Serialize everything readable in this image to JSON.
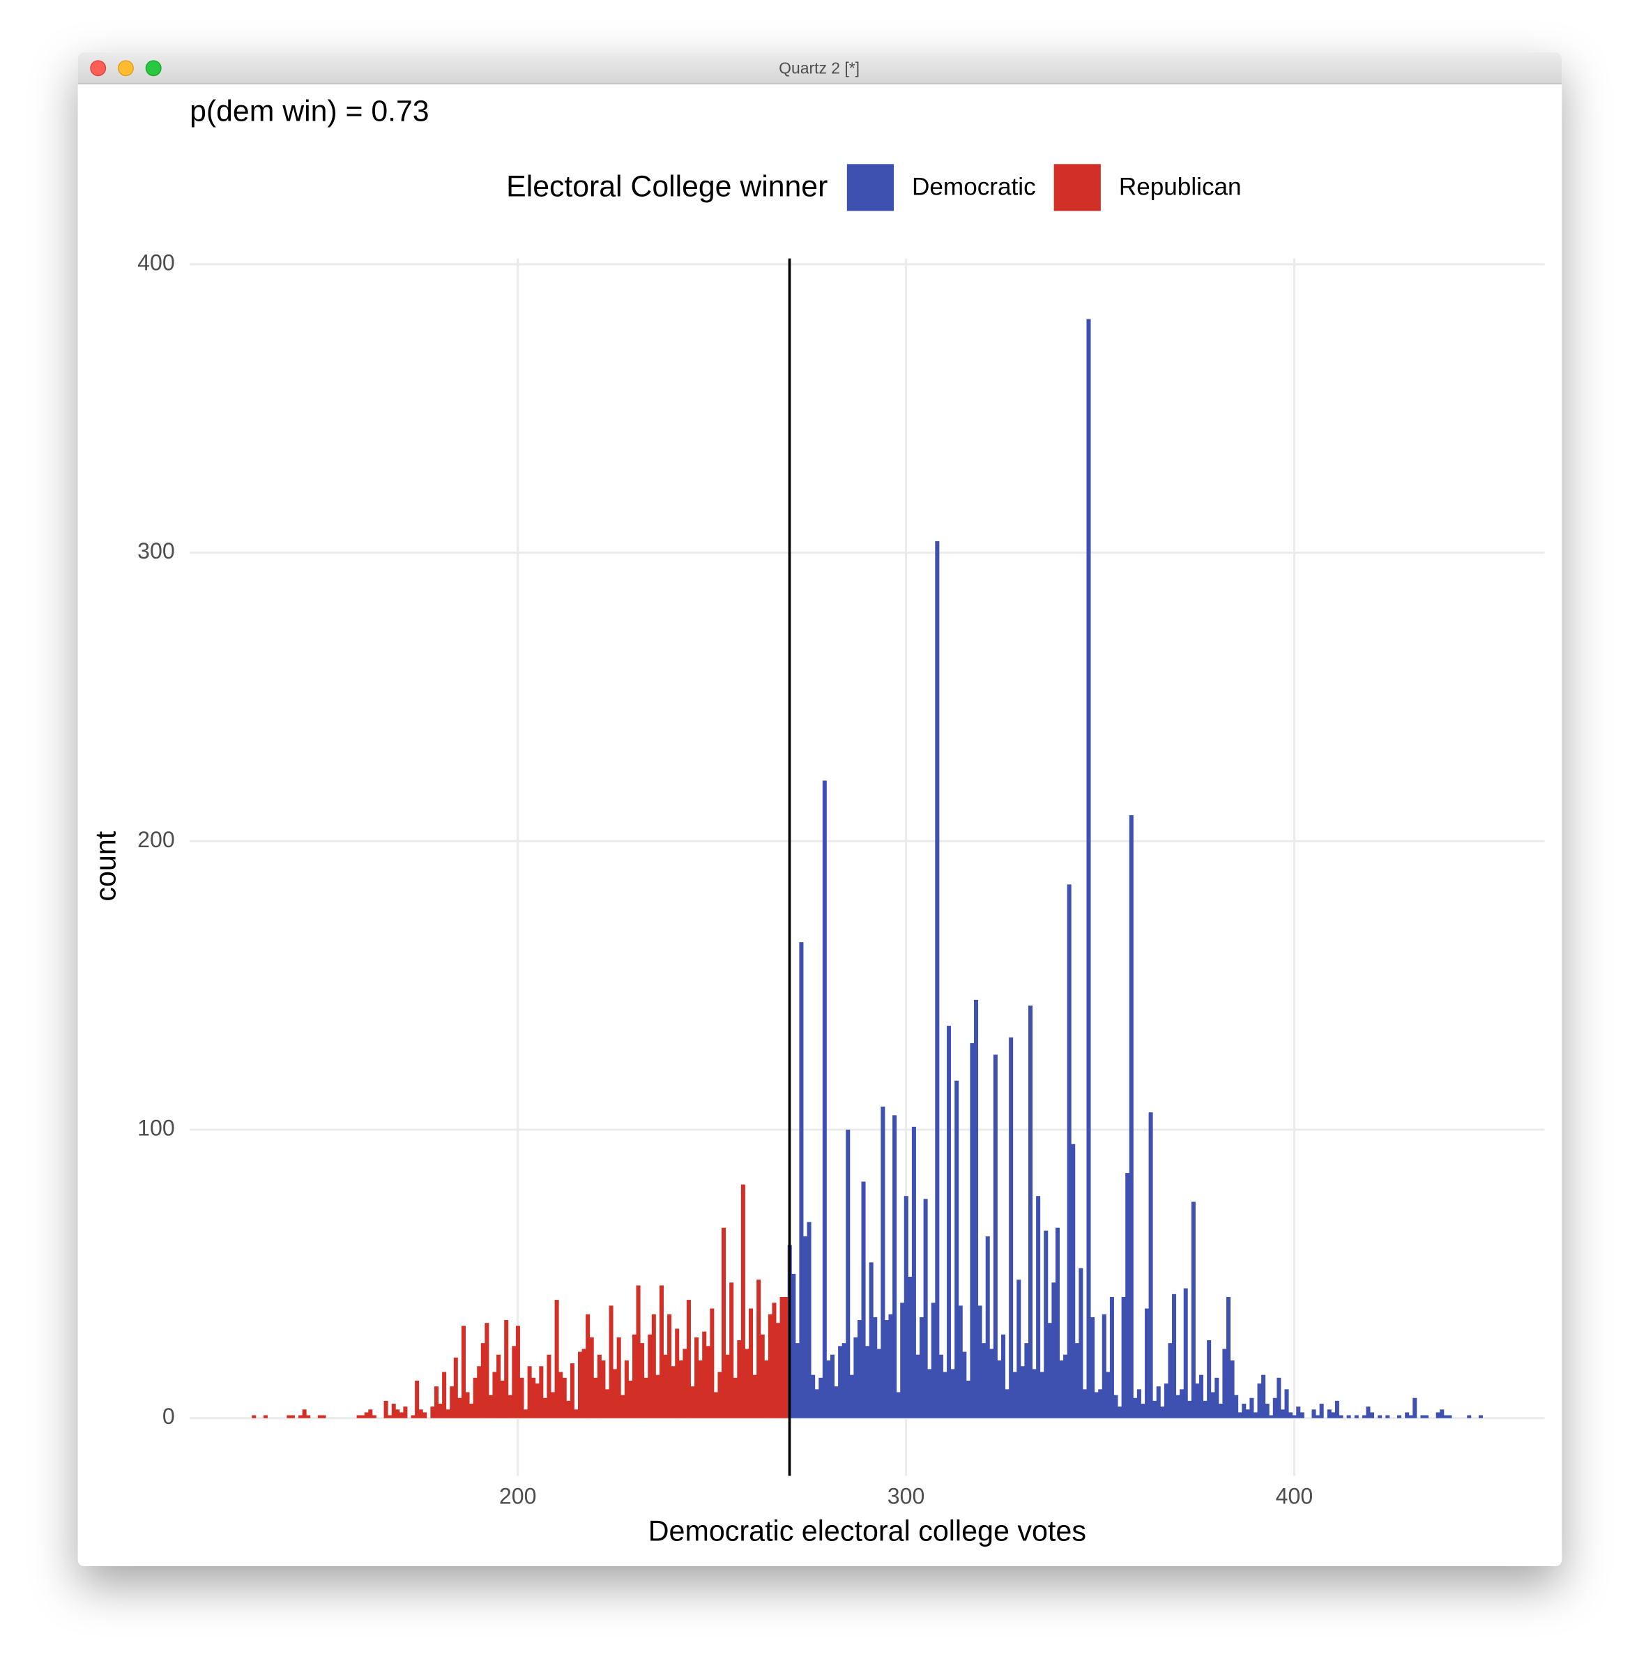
{
  "window": {
    "title": "Quartz 2 [*]"
  },
  "chart_data": {
    "type": "histogram",
    "title": "p(dem win) = 0.73",
    "legend_title": "Electoral College winner",
    "legend": "top",
    "xlabel": "Democratic electoral college votes",
    "ylabel": "count",
    "xlim": [
      115.5,
      464.5
    ],
    "ylim": [
      -20,
      402
    ],
    "xticks": [
      200,
      300,
      400
    ],
    "yticks": [
      0,
      100,
      200,
      300,
      400
    ],
    "grid": true,
    "vline": 270,
    "series": [
      {
        "name": "Democratic",
        "color": "#3f51b0",
        "x": [
          270,
          271,
          272,
          273,
          274,
          275,
          276,
          277,
          278,
          279,
          280,
          281,
          282,
          283,
          284,
          285,
          286,
          287,
          288,
          289,
          290,
          291,
          292,
          293,
          294,
          295,
          296,
          297,
          298,
          299,
          300,
          301,
          302,
          303,
          304,
          305,
          306,
          307,
          308,
          309,
          310,
          311,
          312,
          313,
          314,
          315,
          316,
          317,
          318,
          319,
          320,
          321,
          322,
          323,
          324,
          325,
          326,
          327,
          328,
          329,
          330,
          331,
          332,
          333,
          334,
          335,
          336,
          337,
          338,
          339,
          340,
          341,
          342,
          343,
          344,
          345,
          346,
          347,
          348,
          349,
          350,
          351,
          352,
          353,
          354,
          355,
          356,
          357,
          358,
          359,
          360,
          361,
          362,
          363,
          364,
          365,
          366,
          367,
          368,
          369,
          370,
          371,
          372,
          373,
          374,
          375,
          376,
          377,
          378,
          379,
          380,
          381,
          382,
          383,
          384,
          385,
          386,
          387,
          388,
          389,
          390,
          391,
          392,
          393,
          394,
          395,
          396,
          397,
          398,
          399,
          400,
          401,
          402,
          403,
          404,
          405,
          406,
          407,
          408,
          409,
          410,
          411,
          412,
          413,
          414,
          415,
          416,
          417,
          418,
          419,
          420,
          421,
          422,
          423,
          424,
          425,
          426,
          427,
          428,
          429,
          430,
          431,
          432,
          433,
          434,
          435,
          436,
          437,
          438,
          439,
          440,
          441,
          442,
          443,
          444,
          445,
          446,
          447,
          448
        ],
        "values": [
          60,
          50,
          26,
          165,
          63,
          68,
          15,
          10,
          14,
          221,
          20,
          22,
          11,
          25,
          26,
          100,
          15,
          28,
          34,
          82,
          25,
          54,
          35,
          24,
          108,
          34,
          36,
          105,
          9,
          40,
          77,
          49,
          101,
          22,
          35,
          76,
          17,
          40,
          304,
          22,
          16,
          136,
          17,
          117,
          39,
          23,
          13,
          130,
          145,
          39,
          26,
          63,
          24,
          126,
          20,
          29,
          10,
          132,
          16,
          48,
          18,
          26,
          143,
          17,
          77,
          16,
          65,
          33,
          47,
          66,
          20,
          22,
          185,
          95,
          26,
          52,
          10,
          381,
          35,
          9,
          10,
          36,
          16,
          42,
          8,
          4,
          42,
          85,
          209,
          7,
          10,
          5,
          38,
          106,
          6,
          11,
          4,
          12,
          26,
          43,
          8,
          10,
          45,
          6,
          75,
          12,
          15,
          6,
          27,
          9,
          14,
          5,
          24,
          42,
          20,
          8,
          2,
          5,
          3,
          7,
          2,
          12,
          15,
          5,
          1,
          7,
          14,
          3,
          10,
          2,
          1,
          4,
          2,
          0,
          0,
          3,
          1,
          5,
          0,
          3,
          2,
          6,
          1,
          0,
          1,
          0,
          1,
          0,
          1,
          4,
          2,
          0,
          1,
          0,
          1,
          0,
          0,
          1,
          0,
          2,
          1,
          7,
          0,
          1,
          1,
          0,
          0,
          2,
          3,
          1,
          1,
          0,
          0,
          0,
          0,
          1,
          0,
          0,
          1
        ]
      },
      {
        "name": "Republican",
        "color": "#d22f27",
        "x": [
          132,
          133,
          134,
          135,
          136,
          137,
          138,
          139,
          140,
          141,
          142,
          143,
          144,
          145,
          146,
          147,
          148,
          149,
          150,
          151,
          152,
          153,
          154,
          155,
          156,
          157,
          158,
          159,
          160,
          161,
          162,
          163,
          164,
          165,
          166,
          167,
          168,
          169,
          170,
          171,
          172,
          173,
          174,
          175,
          176,
          177,
          178,
          179,
          180,
          181,
          182,
          183,
          184,
          185,
          186,
          187,
          188,
          189,
          190,
          191,
          192,
          193,
          194,
          195,
          196,
          197,
          198,
          199,
          200,
          201,
          202,
          203,
          204,
          205,
          206,
          207,
          208,
          209,
          210,
          211,
          212,
          213,
          214,
          215,
          216,
          217,
          218,
          219,
          220,
          221,
          222,
          223,
          224,
          225,
          226,
          227,
          228,
          229,
          230,
          231,
          232,
          233,
          234,
          235,
          236,
          237,
          238,
          239,
          240,
          241,
          242,
          243,
          244,
          245,
          246,
          247,
          248,
          249,
          250,
          251,
          252,
          253,
          254,
          255,
          256,
          257,
          258,
          259,
          260,
          261,
          262,
          263,
          264,
          265,
          266,
          267,
          268,
          269
        ],
        "values": [
          1,
          0,
          0,
          1,
          0,
          0,
          0,
          0,
          0,
          1,
          1,
          0,
          1,
          3,
          1,
          0,
          0,
          1,
          1,
          0,
          0,
          0,
          0,
          0,
          0,
          0,
          0,
          1,
          1,
          2,
          3,
          1,
          0,
          0,
          6,
          1,
          5,
          3,
          2,
          4,
          0,
          1,
          13,
          3,
          2,
          0,
          4,
          11,
          5,
          16,
          3,
          11,
          21,
          7,
          32,
          9,
          5,
          14,
          18,
          26,
          33,
          8,
          16,
          22,
          13,
          34,
          8,
          25,
          32,
          14,
          3,
          18,
          14,
          12,
          18,
          7,
          22,
          9,
          41,
          16,
          14,
          6,
          19,
          3,
          23,
          24,
          36,
          28,
          14,
          22,
          20,
          10,
          39,
          17,
          28,
          8,
          20,
          13,
          29,
          46,
          26,
          14,
          29,
          36,
          15,
          46,
          22,
          36,
          18,
          31,
          20,
          24,
          41,
          11,
          28,
          20,
          30,
          25,
          38,
          9,
          16,
          66,
          22,
          47,
          14,
          27,
          81,
          24,
          38,
          15,
          48,
          29,
          20,
          36,
          40,
          33,
          42,
          42
        ]
      }
    ]
  }
}
